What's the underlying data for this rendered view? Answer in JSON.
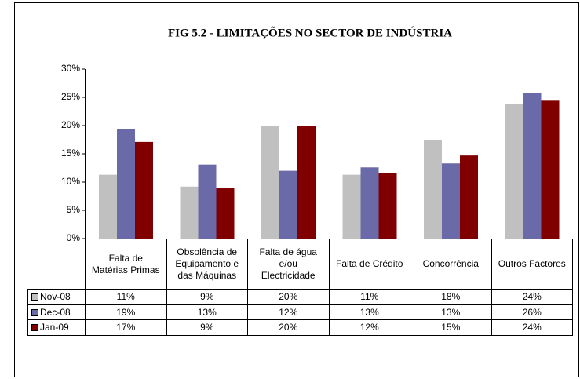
{
  "chart_data": {
    "type": "bar",
    "title": "FIG 5.2 - LIMITAÇÕES  NO SECTOR DE INDÚSTRIA",
    "categories": [
      "Falta de Matérias Primas",
      "Obsolência de Equipamento e das Máquinas",
      "Falta de água e/ou Electricidade",
      "Falta de Crédito",
      "Concorrência",
      "Outros Factores"
    ],
    "series": [
      {
        "name": "Nov-08",
        "color": "#c0c0c0",
        "values": [
          11.3,
          9.2,
          20,
          11.3,
          17.5,
          23.8
        ],
        "value_labels": [
          "11%",
          "9%",
          "20%",
          "11%",
          "18%",
          "24%"
        ]
      },
      {
        "name": "Dec-08",
        "color": "#6a6aa8",
        "values": [
          19.4,
          13.1,
          12,
          12.6,
          13.3,
          25.7
        ],
        "value_labels": [
          "19%",
          "13%",
          "12%",
          "13%",
          "13%",
          "26%"
        ]
      },
      {
        "name": "Jan-09",
        "color": "#800000",
        "values": [
          17.1,
          8.9,
          20,
          11.6,
          14.7,
          24.4
        ],
        "value_labels": [
          "17%",
          "9%",
          "20%",
          "12%",
          "15%",
          "24%"
        ]
      }
    ],
    "ylim": [
      0,
      30
    ],
    "yticks": [
      {
        "value": 0,
        "label": "0%"
      },
      {
        "value": 5,
        "label": "5%"
      },
      {
        "value": 10,
        "label": "10%"
      },
      {
        "value": 15,
        "label": "15%"
      },
      {
        "value": 20,
        "label": "20%"
      },
      {
        "value": 25,
        "label": "25%"
      },
      {
        "value": 30,
        "label": "30%"
      }
    ],
    "grid": false
  }
}
